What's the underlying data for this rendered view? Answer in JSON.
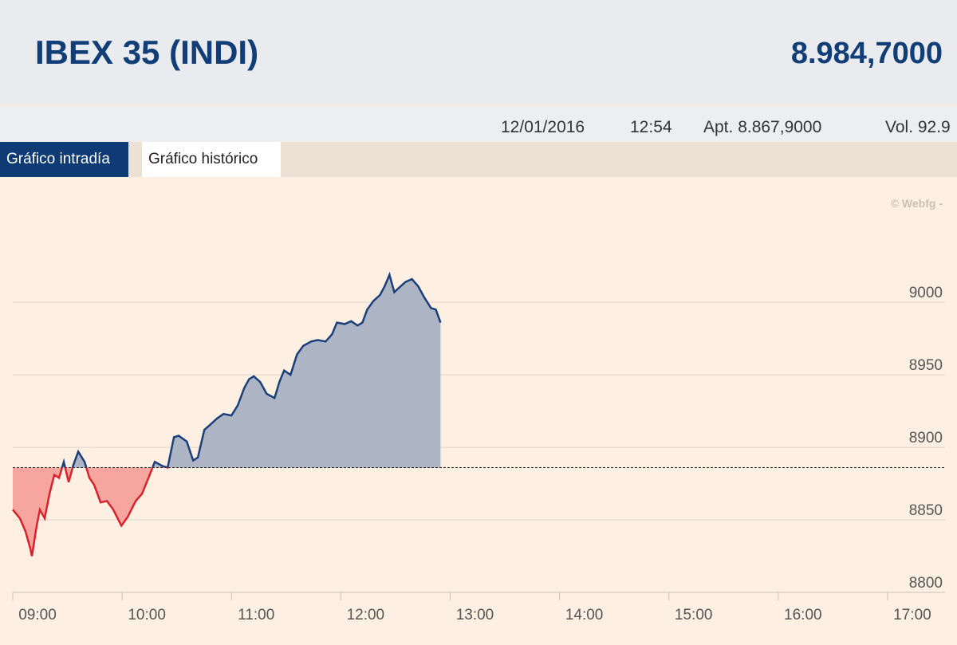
{
  "header": {
    "title": "IBEX 35 (INDI)",
    "last": "8.984,7000"
  },
  "info": {
    "date": "12/01/2016",
    "time": "12:54",
    "open": "Apt. 8.867,9000",
    "volume": "Vol. 92.9"
  },
  "tabs": [
    "Gráfico intradía",
    "Gráfico histórico"
  ],
  "chart_data": {
    "type": "area",
    "source": "© Webfg -",
    "x": [
      9.0,
      9.066,
      9.117,
      9.161,
      9.175,
      9.219,
      9.248,
      9.292,
      9.336,
      9.38,
      9.423,
      9.467,
      9.511,
      9.555,
      9.599,
      9.657,
      9.701,
      9.745,
      9.803,
      9.861,
      9.92,
      9.993,
      10.051,
      10.124,
      10.182,
      10.241,
      10.299,
      10.372,
      10.416,
      10.474,
      10.518,
      10.591,
      10.65,
      10.693,
      10.752,
      10.796,
      10.869,
      10.927,
      11.0,
      11.058,
      11.117,
      11.161,
      11.204,
      11.263,
      11.321,
      11.394,
      11.438,
      11.482,
      11.54,
      11.599,
      11.657,
      11.73,
      11.788,
      11.861,
      11.92,
      11.964,
      12.036,
      12.095,
      12.153,
      12.197,
      12.241,
      12.299,
      12.358,
      12.401,
      12.445,
      12.489,
      12.547,
      12.591,
      12.65,
      12.708,
      12.766,
      12.825,
      12.869,
      12.912
    ],
    "values": [
      8857,
      8851,
      8842,
      8830,
      8825,
      8846,
      8857,
      8851,
      8868,
      8881,
      8879,
      8890,
      8876,
      8888,
      8897,
      8890,
      8879,
      8874,
      8862,
      8863,
      8857,
      8846,
      8852,
      8863,
      8868,
      8879,
      8890,
      8887,
      8886,
      8907,
      8908,
      8904,
      8891,
      8893,
      8912,
      8915,
      8920,
      8923,
      8922,
      8929,
      8941,
      8947,
      8949,
      8945,
      8937,
      8934,
      8945,
      8953,
      8950,
      8964,
      8970,
      8973,
      8974,
      8973,
      8978,
      8986,
      8985,
      8987,
      8984,
      8986,
      8995,
      9001,
      9005,
      9011,
      9019,
      9007,
      9011,
      9014,
      9016,
      9011,
      9003,
      8996,
      8995,
      8986
    ],
    "reference": 8886,
    "up_color": "#1a3f7a",
    "up_fill": "#adb5c4",
    "down_color": "#d9232c",
    "down_fill": "#f6a69e",
    "xlim": [
      9,
      17.5
    ],
    "ylim": [
      8800,
      9060
    ],
    "xticks": [
      {
        "value": 9,
        "label": "09:00"
      },
      {
        "value": 10,
        "label": "10:00"
      },
      {
        "value": 11,
        "label": "11:00"
      },
      {
        "value": 12,
        "label": "12:00"
      },
      {
        "value": 13,
        "label": "13:00"
      },
      {
        "value": 14,
        "label": "14:00"
      },
      {
        "value": 15,
        "label": "15:00"
      },
      {
        "value": 16,
        "label": "16:00"
      },
      {
        "value": 17,
        "label": "17:00"
      }
    ],
    "yticks": [
      8800,
      8850,
      8900,
      8950,
      9000
    ],
    "grid": true
  }
}
